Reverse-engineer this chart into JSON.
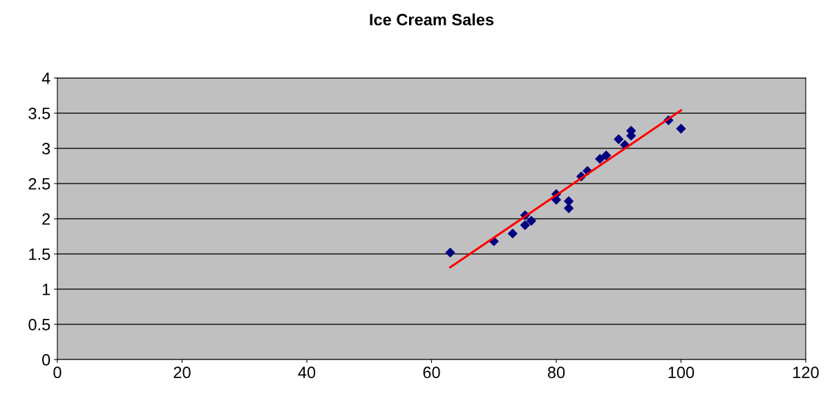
{
  "chart_data": {
    "type": "scatter",
    "title": "Ice Cream Sales",
    "xlim": [
      0,
      120
    ],
    "xticks": [
      0,
      20,
      40,
      60,
      80,
      100,
      120
    ],
    "ylim": [
      0,
      4
    ],
    "yticks": [
      0,
      0.5,
      1,
      1.5,
      2,
      2.5,
      3,
      3.5,
      4
    ],
    "grid": "y",
    "legend": false,
    "series": [
      {
        "marker": "diamond",
        "color": "#000080",
        "x": [
          63,
          70,
          73,
          75,
          75,
          76,
          80,
          80,
          82,
          82,
          84,
          85,
          87,
          88,
          90,
          91,
          92,
          92,
          98,
          100
        ],
        "values": [
          1.52,
          1.68,
          1.79,
          2.05,
          1.91,
          1.97,
          2.35,
          2.27,
          2.25,
          2.15,
          2.6,
          2.68,
          2.85,
          2.9,
          3.13,
          3.05,
          3.25,
          3.18,
          3.4,
          3.28
        ]
      },
      {
        "type": "line",
        "color": "#ff0000",
        "x": [
          63,
          100
        ],
        "values": [
          1.31,
          3.54
        ]
      }
    ]
  }
}
